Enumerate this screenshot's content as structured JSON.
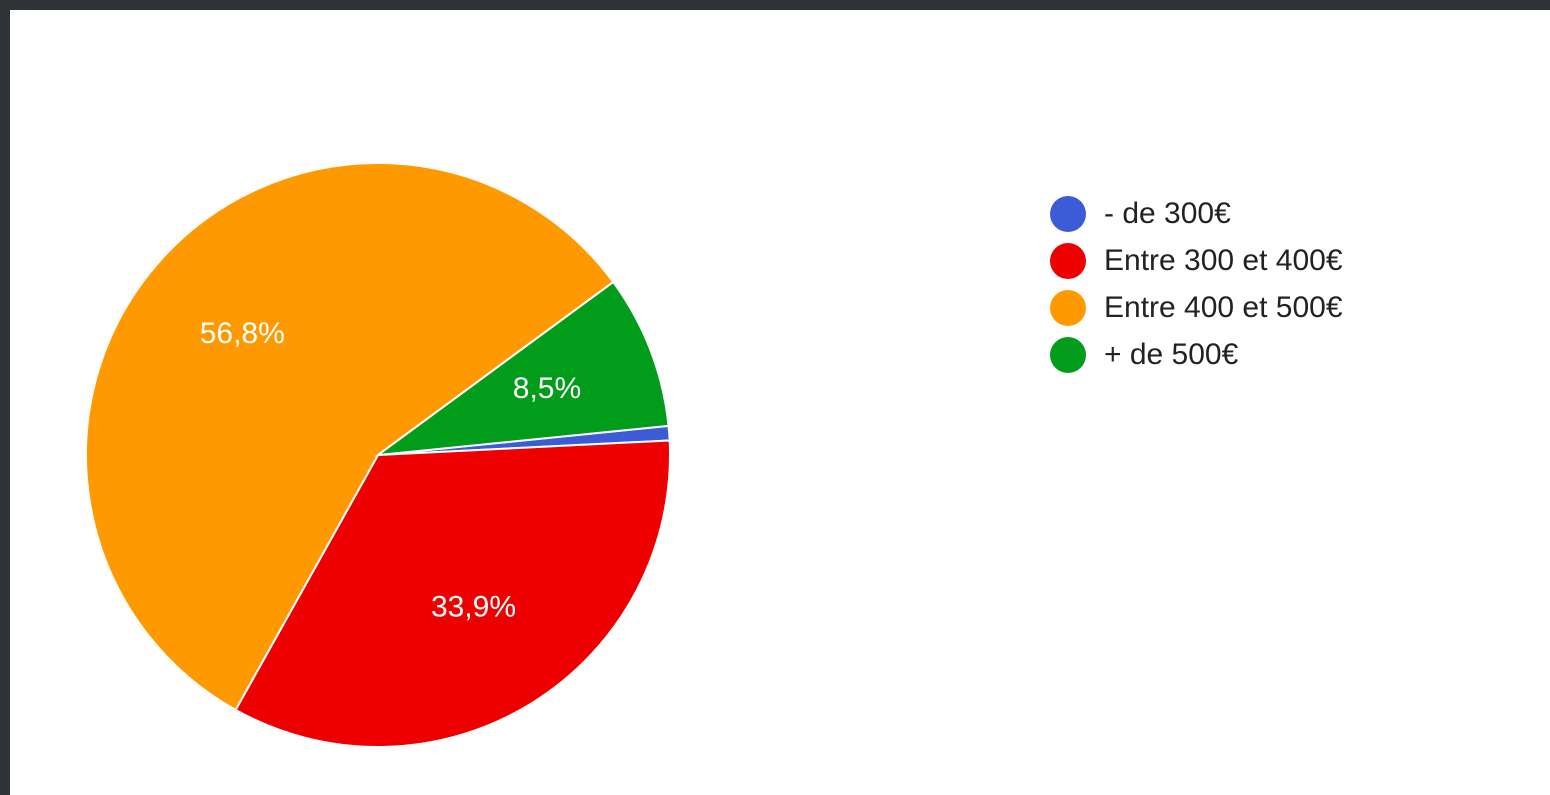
{
  "chart_data": {
    "type": "pie",
    "categories": [
      "- de 300€",
      "Entre 300 et 400€",
      "Entre 400 et 500€",
      "+ de 500€"
    ],
    "values": [
      0.8,
      33.9,
      56.8,
      8.5
    ],
    "slice_labels": [
      "",
      "33,9%",
      "56,8%",
      "8,5%"
    ],
    "colors": [
      "#3c5bd6",
      "#ee0000",
      "#ff9900",
      "#009c1a"
    ],
    "legend_position": "right"
  }
}
